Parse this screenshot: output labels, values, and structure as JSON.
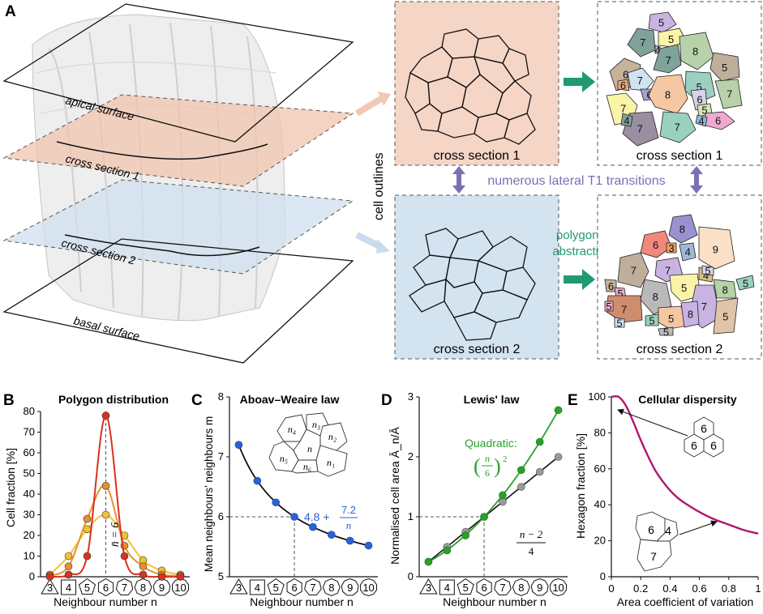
{
  "panel_a": {
    "letter": "A",
    "block_labels": {
      "apical": "apical surface",
      "cs1": "cross section 1",
      "cs2": "cross section 2",
      "basal": "basal surface"
    },
    "cell_outlines": "cell outlines",
    "cs1_outline_caption": "cross section 1",
    "cs2_outline_caption": "cross section 2",
    "cs1_poly_caption": "cross section 1",
    "cs2_poly_caption": "cross section 2",
    "t1_text": "numerous lateral T1 transitions",
    "abstraction_line1": "polygonal",
    "abstraction_line2": "abstraction",
    "cs1_numbers": [
      "5",
      "7",
      "5",
      "4",
      "8",
      "7",
      "6",
      "7",
      "5",
      "6",
      "5",
      "8",
      "6",
      "7",
      "7",
      "5",
      "6",
      "7",
      "7",
      "4",
      "6",
      "4"
    ],
    "cs2_numbers": [
      "8",
      "6",
      "3",
      "4",
      "9",
      "7",
      "7",
      "8",
      "5",
      "4",
      "6",
      "5",
      "8",
      "7",
      "5",
      "7",
      "5",
      "5",
      "5",
      "5",
      "8",
      "5",
      "5",
      "5"
    ],
    "colors": {
      "salmon_fill": "#f5d5c6",
      "blue_fill": "#d3e3f0",
      "t1_color": "#7b6fb2",
      "teal": "#1f9a72"
    }
  },
  "panel_b": {
    "letter": "B",
    "n_label": "n̄ = 6",
    "chart_data": {
      "type": "line",
      "title": "Polygon distribution",
      "xlabel": "Neighbour number n",
      "ylabel": "Cell fraction [%]",
      "x": [
        3,
        4,
        5,
        6,
        7,
        8,
        9,
        10
      ],
      "xticklabels": [
        "3",
        "4",
        "5",
        "6",
        "7",
        "8",
        "9",
        "10"
      ],
      "ylim": [
        0,
        80
      ],
      "yticks": [
        "0",
        "10",
        "20",
        "30",
        "40",
        "50",
        "60",
        "70",
        "80"
      ],
      "series": [
        {
          "name": "yellow",
          "color": "#f2c233",
          "values": [
            1,
            10,
            23,
            30,
            20,
            8,
            3,
            1
          ]
        },
        {
          "name": "orange",
          "color": "#e8902e",
          "values": [
            0.5,
            5,
            28,
            44,
            15,
            5,
            1,
            0.5
          ]
        },
        {
          "name": "red",
          "color": "#d8321f",
          "values": [
            0,
            1,
            10,
            78,
            10,
            1,
            0,
            0
          ]
        }
      ]
    }
  },
  "panel_c": {
    "letter": "C",
    "formula_main": "4.8 +",
    "formula_num": "7.2",
    "formula_den": "n",
    "inset": [
      "n₄",
      "n₃",
      "n₂",
      "n",
      "n₅",
      "n₆",
      "n₁"
    ],
    "chart_data": {
      "type": "line",
      "title": "Aboav–Weaire law",
      "xlabel": "Neighbour number n",
      "ylabel": "Mean neighbours' neighbours m",
      "x": [
        3,
        4,
        5,
        6,
        7,
        8,
        9,
        10
      ],
      "xticklabels": [
        "3",
        "4",
        "5",
        "6",
        "7",
        "8",
        "9",
        "10"
      ],
      "ylim": [
        5,
        8
      ],
      "yticks": [
        "5",
        "6",
        "7",
        "8"
      ],
      "series": [
        {
          "name": "m(n)",
          "color": "#2a63d8",
          "values": [
            7.2,
            6.6,
            6.24,
            6.0,
            5.83,
            5.7,
            5.6,
            5.52
          ]
        }
      ]
    }
  },
  "panel_d": {
    "letter": "D",
    "quad_label": "Quadratic:",
    "quad_num": "n",
    "quad_den": "6",
    "quad_exp": "2",
    "lin_num": "n − 2",
    "lin_den": "4",
    "chart_data": {
      "type": "line",
      "title": "Lewis' law",
      "xlabel": "Neighbour number n",
      "ylabel": "Normalised cell area Ā_n/Ā",
      "x": [
        3,
        4,
        5,
        6,
        7,
        8,
        9,
        10
      ],
      "xticklabels": [
        "3",
        "4",
        "5",
        "6",
        "7",
        "8",
        "9",
        "10"
      ],
      "ylim": [
        0,
        3
      ],
      "yticks": [
        "0",
        "1",
        "2",
        "3"
      ],
      "series": [
        {
          "name": "Quadratic",
          "color": "#2aa02a",
          "values": [
            0.25,
            0.44,
            0.69,
            1.0,
            1.36,
            1.78,
            2.25,
            2.78
          ]
        },
        {
          "name": "Linear",
          "color": "#8c8c8c",
          "values": [
            0.25,
            0.5,
            0.75,
            1.0,
            1.25,
            1.5,
            1.75,
            2.0
          ]
        }
      ]
    }
  },
  "panel_e": {
    "letter": "E",
    "hex_numbers": [
      "6",
      "6",
      "6"
    ],
    "irr_numbers": [
      "6",
      "4",
      "7"
    ],
    "chart_data": {
      "type": "line",
      "title": "Cellular dispersity",
      "xlabel": "Area coefficient of variation",
      "ylabel": "Hexagon fraction [%]",
      "x": [
        0,
        0.05,
        0.1,
        0.15,
        0.2,
        0.25,
        0.3,
        0.35,
        0.4,
        0.45,
        0.5,
        0.6,
        0.7,
        0.8,
        0.9,
        1.0
      ],
      "xticklabels": [
        "0",
        "0.2",
        "0.4",
        "0.6",
        "0.8",
        "1"
      ],
      "ylim": [
        0,
        100
      ],
      "yticks": [
        "0",
        "20",
        "40",
        "60",
        "80",
        "100"
      ],
      "series": [
        {
          "name": "hexagon fraction",
          "color": "#b0156f",
          "values": [
            100,
            100,
            95,
            86,
            76,
            67,
            59,
            53,
            48,
            44,
            41,
            36,
            32,
            29,
            26,
            24
          ]
        }
      ]
    }
  }
}
